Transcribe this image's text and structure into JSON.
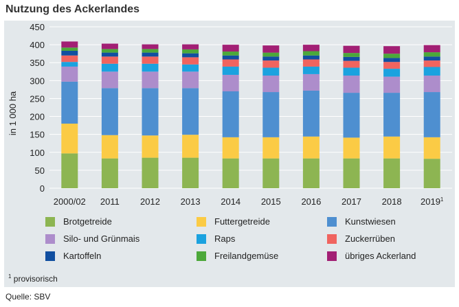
{
  "title": "Nutzung des Ackerlandes",
  "footnote": {
    "marker": "1",
    "text": "provisorisch"
  },
  "source": "Quelle: SBV",
  "chart_data": {
    "type": "bar",
    "stacked": true,
    "title": "Nutzung des Ackerlandes",
    "ylabel": "in 1 000 ha",
    "xlabel": "",
    "ylim": [
      0,
      450
    ],
    "yticks": [
      0,
      50,
      100,
      150,
      200,
      250,
      300,
      350,
      400,
      450
    ],
    "grid": true,
    "categories": [
      "2000/02",
      "2011",
      "2012",
      "2013",
      "2014",
      "2015",
      "2016",
      "2017",
      "2018",
      "2019"
    ],
    "category_footnotes": {
      "2019": "1"
    },
    "series": [
      {
        "name": "Brotgetreide",
        "color": "#8db552",
        "values": [
          97,
          83,
          85,
          85,
          83,
          83,
          83,
          83,
          83,
          82
        ]
      },
      {
        "name": "Futtergetreide",
        "color": "#fbcb45",
        "values": [
          83,
          65,
          62,
          64,
          59,
          59,
          61,
          58,
          61,
          60
        ]
      },
      {
        "name": "Kunstwiesen",
        "color": "#4e8fd0",
        "values": [
          117,
          131,
          132,
          130,
          128,
          126,
          128,
          125,
          122,
          126
        ]
      },
      {
        "name": "Silo- und Grünmais",
        "color": "#ad8dcb",
        "values": [
          42,
          46,
          46,
          46,
          46,
          46,
          46,
          48,
          45,
          46
        ]
      },
      {
        "name": "Raps",
        "color": "#1ba2df",
        "values": [
          13,
          22,
          22,
          20,
          23,
          22,
          21,
          22,
          22,
          24
        ]
      },
      {
        "name": "Zuckerrüben",
        "color": "#f0645f",
        "values": [
          18,
          20,
          20,
          20,
          20,
          20,
          20,
          19,
          19,
          18
        ]
      },
      {
        "name": "Kartoffeln",
        "color": "#114fa0",
        "values": [
          13,
          11,
          11,
          11,
          11,
          11,
          11,
          11,
          11,
          11
        ]
      },
      {
        "name": "Freilandgemüse",
        "color": "#4ca83a",
        "values": [
          9,
          10,
          10,
          11,
          11,
          11,
          12,
          11,
          12,
          12
        ]
      },
      {
        "name": "übriges Ackerland",
        "color": "#a21f74",
        "values": [
          17,
          15,
          13,
          14,
          19,
          20,
          18,
          20,
          21,
          20
        ]
      }
    ]
  }
}
